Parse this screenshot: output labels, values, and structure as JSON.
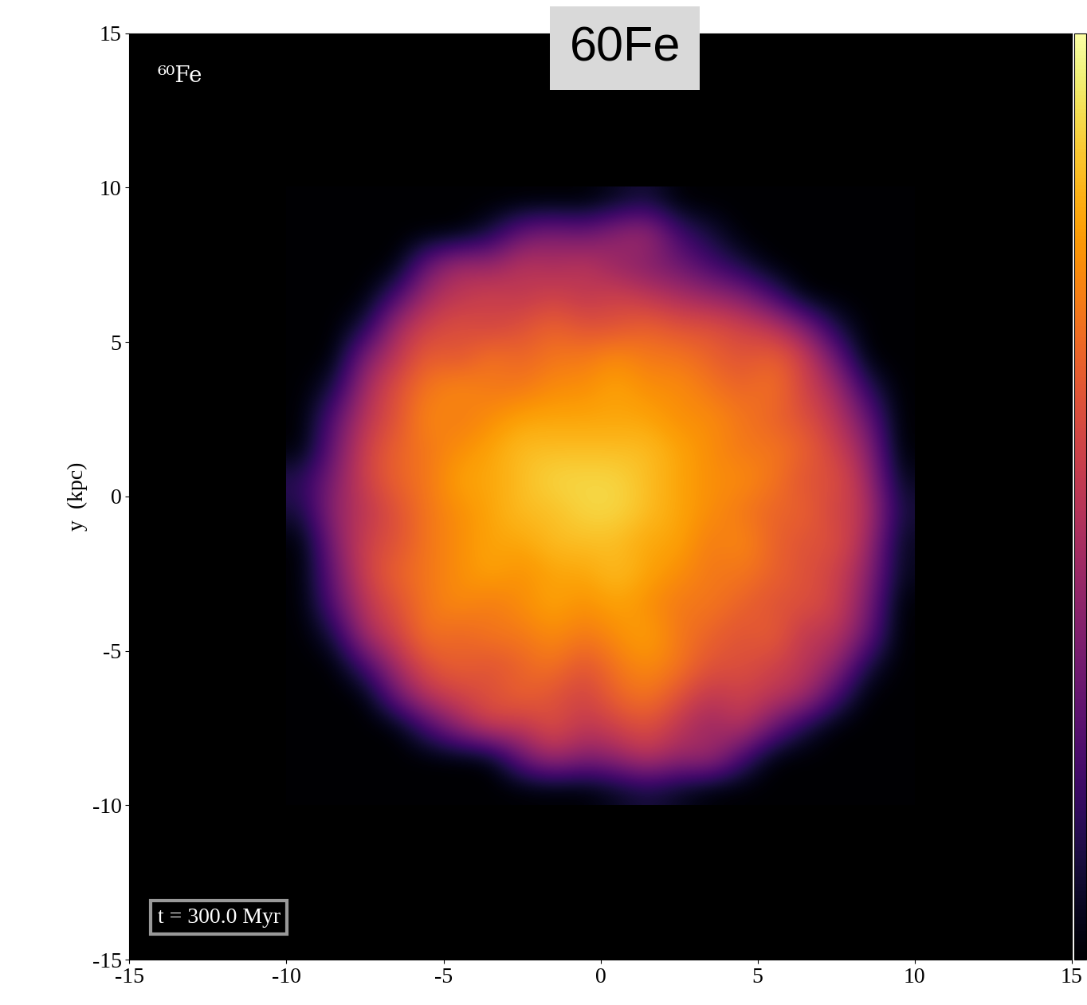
{
  "chart_data": {
    "type": "heatmap",
    "title": "60Fe",
    "annotations": [
      "⁶⁰Fe",
      "t = 300.0 Myr"
    ],
    "y_label": "y  (kpc)",
    "xlim": [
      -15,
      15
    ],
    "ylim": [
      -15,
      15
    ],
    "xticks": [
      -15,
      -10,
      -5,
      0,
      5,
      10,
      15
    ],
    "yticks": [
      -15,
      -10,
      -5,
      0,
      5,
      10,
      15
    ],
    "x_edges": [
      -10,
      -9,
      -8,
      -7,
      -6,
      -5,
      -4,
      -3,
      -2,
      -1,
      0,
      1,
      2,
      3,
      4,
      5,
      6,
      7,
      8,
      9,
      10
    ],
    "y_edges": [
      -10,
      -9,
      -8,
      -7,
      -6,
      -5,
      -4,
      -3,
      -2,
      -1,
      0,
      1,
      2,
      3,
      4,
      5,
      6,
      7,
      8,
      9,
      10
    ],
    "color_range": [
      0,
      1
    ],
    "colorbar_ticks": [],
    "cells": [
      [
        0,
        0,
        0,
        0,
        0,
        0,
        0,
        0,
        0,
        0,
        0.05,
        0.1,
        0.05,
        0,
        0,
        0,
        0,
        0,
        0,
        0
      ],
      [
        0,
        0,
        0,
        0,
        0,
        0,
        0,
        0.3,
        0.45,
        0.35,
        0.4,
        0.5,
        0.4,
        0.45,
        0.2,
        0,
        0,
        0,
        0,
        0
      ],
      [
        0,
        0,
        0,
        0,
        0.2,
        0.4,
        0.55,
        0.5,
        0.6,
        0.5,
        0.55,
        0.6,
        0.5,
        0.4,
        0.5,
        0.3,
        0.1,
        0,
        0,
        0
      ],
      [
        0,
        0,
        0,
        0.3,
        0.5,
        0.55,
        0.6,
        0.65,
        0.6,
        0.55,
        0.65,
        0.7,
        0.6,
        0.5,
        0.55,
        0.5,
        0.45,
        0.2,
        0,
        0
      ],
      [
        0,
        0,
        0.2,
        0.45,
        0.6,
        0.65,
        0.6,
        0.65,
        0.7,
        0.6,
        0.7,
        0.75,
        0.7,
        0.6,
        0.6,
        0.55,
        0.5,
        0.4,
        0.1,
        0
      ],
      [
        0,
        0.1,
        0.45,
        0.55,
        0.7,
        0.65,
        0.7,
        0.7,
        0.75,
        0.7,
        0.75,
        0.8,
        0.7,
        0.65,
        0.6,
        0.65,
        0.5,
        0.5,
        0.3,
        0
      ],
      [
        0,
        0.25,
        0.5,
        0.6,
        0.7,
        0.75,
        0.7,
        0.75,
        0.8,
        0.75,
        0.8,
        0.75,
        0.7,
        0.7,
        0.65,
        0.6,
        0.6,
        0.55,
        0.35,
        0
      ],
      [
        0,
        0.3,
        0.55,
        0.65,
        0.7,
        0.75,
        0.8,
        0.75,
        0.8,
        0.8,
        0.85,
        0.8,
        0.75,
        0.7,
        0.7,
        0.65,
        0.6,
        0.55,
        0.4,
        0.05
      ],
      [
        0,
        0.35,
        0.55,
        0.6,
        0.7,
        0.75,
        0.8,
        0.8,
        0.85,
        0.85,
        0.85,
        0.8,
        0.8,
        0.7,
        0.75,
        0.65,
        0.6,
        0.6,
        0.45,
        0.05
      ],
      [
        0.1,
        0.4,
        0.5,
        0.6,
        0.7,
        0.75,
        0.8,
        0.85,
        0.85,
        0.9,
        0.9,
        0.85,
        0.8,
        0.75,
        0.7,
        0.65,
        0.65,
        0.55,
        0.5,
        0.1
      ],
      [
        0.15,
        0.35,
        0.55,
        0.65,
        0.7,
        0.8,
        0.8,
        0.85,
        0.9,
        0.9,
        0.9,
        0.85,
        0.8,
        0.75,
        0.75,
        0.7,
        0.6,
        0.6,
        0.45,
        0.05
      ],
      [
        0,
        0.3,
        0.55,
        0.65,
        0.7,
        0.75,
        0.8,
        0.85,
        0.85,
        0.85,
        0.85,
        0.85,
        0.8,
        0.75,
        0.7,
        0.7,
        0.65,
        0.55,
        0.4,
        0
      ],
      [
        0,
        0.25,
        0.5,
        0.6,
        0.75,
        0.7,
        0.75,
        0.8,
        0.8,
        0.8,
        0.8,
        0.8,
        0.75,
        0.75,
        0.7,
        0.65,
        0.6,
        0.5,
        0.3,
        0
      ],
      [
        0,
        0.1,
        0.45,
        0.6,
        0.7,
        0.75,
        0.7,
        0.7,
        0.75,
        0.75,
        0.8,
        0.75,
        0.75,
        0.7,
        0.65,
        0.7,
        0.55,
        0.45,
        0.15,
        0
      ],
      [
        0,
        0,
        0.35,
        0.5,
        0.65,
        0.6,
        0.7,
        0.65,
        0.7,
        0.7,
        0.75,
        0.7,
        0.7,
        0.65,
        0.6,
        0.65,
        0.55,
        0.3,
        0,
        0
      ],
      [
        0,
        0,
        0.1,
        0.45,
        0.55,
        0.6,
        0.55,
        0.6,
        0.65,
        0.6,
        0.6,
        0.65,
        0.6,
        0.6,
        0.55,
        0.5,
        0.35,
        0.1,
        0,
        0
      ],
      [
        0,
        0,
        0,
        0.2,
        0.45,
        0.5,
        0.55,
        0.5,
        0.55,
        0.5,
        0.55,
        0.5,
        0.45,
        0.4,
        0.35,
        0.2,
        0,
        0,
        0,
        0
      ],
      [
        0,
        0,
        0,
        0,
        0.3,
        0.45,
        0.4,
        0.5,
        0.45,
        0.5,
        0.4,
        0.35,
        0.3,
        0.2,
        0.1,
        0,
        0,
        0,
        0,
        0
      ],
      [
        0,
        0,
        0,
        0,
        0,
        0,
        0.1,
        0.3,
        0.35,
        0.3,
        0.4,
        0.45,
        0.2,
        0.1,
        0,
        0,
        0,
        0,
        0,
        0
      ],
      [
        0,
        0,
        0,
        0,
        0,
        0,
        0,
        0,
        0,
        0,
        0.05,
        0.1,
        0,
        0,
        0,
        0,
        0,
        0,
        0,
        0
      ]
    ]
  }
}
